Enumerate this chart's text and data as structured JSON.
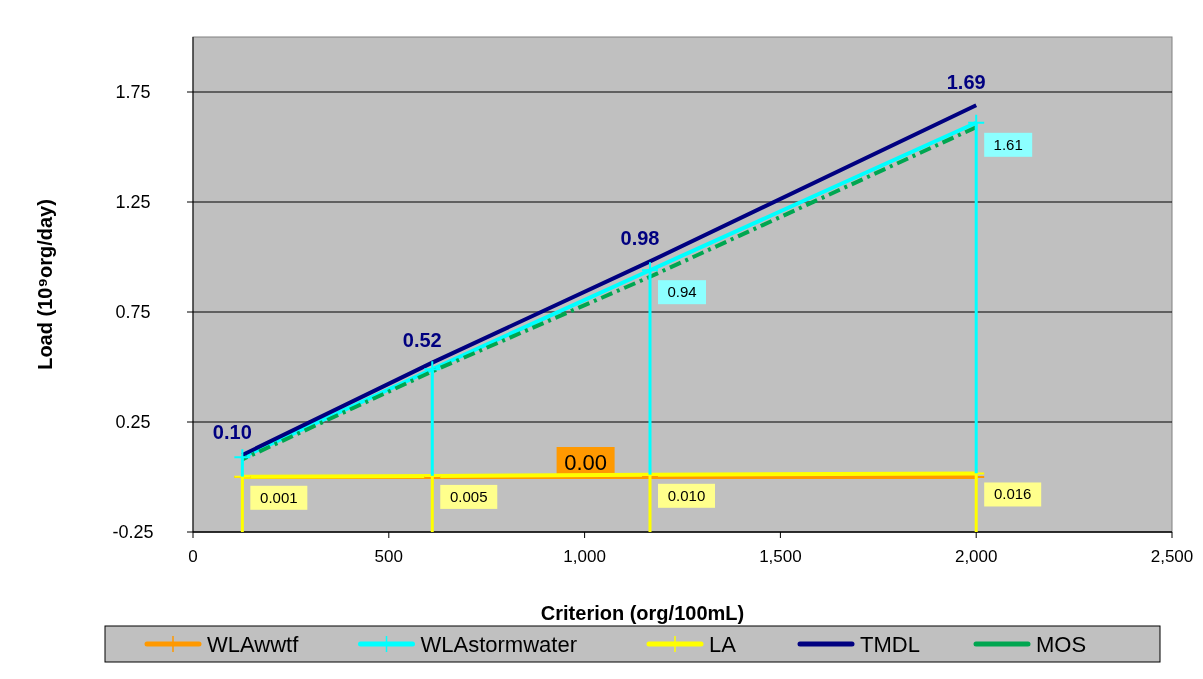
{
  "chart_data": {
    "type": "line",
    "xlabel": "Criterion (org/100mL)",
    "ylabel": "Load (10⁹org/day)",
    "x": [
      126,
      611,
      1167,
      2000
    ],
    "xlim": [
      0,
      2500
    ],
    "xticks": [
      0,
      {
        "value": 500,
        "label": "500"
      },
      {
        "value": 1000,
        "label": "1,000"
      },
      {
        "value": 1500,
        "label": "1,500"
      },
      {
        "value": 2000,
        "label": "2,000"
      },
      {
        "value": 2500,
        "label": "2,500"
      }
    ],
    "ylim": [
      -0.25,
      2.0
    ],
    "yticks": [
      -0.25,
      0.25,
      0.75,
      1.25,
      1.75
    ],
    "grid": "y",
    "legend": "bottom",
    "annotations": [
      {
        "text": "0.00",
        "x": 1000,
        "y": 0
      }
    ],
    "series": [
      {
        "name": "WLAwwtf",
        "color": "#ff9900",
        "values": [
          0,
          0,
          0,
          0
        ],
        "marker": "cross"
      },
      {
        "name": "WLAstormwater",
        "color": "#00ffff",
        "values": [
          0.09,
          0.49,
          0.94,
          1.61
        ],
        "marker": "cross",
        "errors": [
          [
            0.001,
            0.09
          ],
          [
            0.005,
            0.49
          ],
          [
            0.01,
            0.94
          ],
          [
            0.016,
            1.61
          ]
        ],
        "value_labels": [
          null,
          null,
          "0.94",
          "1.61"
        ]
      },
      {
        "name": "LA",
        "color": "#ffff00",
        "values": [
          0.001,
          0.005,
          0.01,
          0.016
        ],
        "marker": "cross",
        "errors": [
          [
            -0.25,
            0.001
          ],
          [
            -0.25,
            0.005
          ],
          [
            -0.25,
            0.01
          ],
          [
            -0.25,
            0.016
          ]
        ],
        "value_labels": [
          "0.001",
          "0.005",
          "0.010",
          "0.016"
        ]
      },
      {
        "name": "TMDL",
        "color": "#000080",
        "values": [
          0.1,
          0.52,
          0.98,
          1.69
        ],
        "marker": "none",
        "value_labels": [
          "0.10",
          "0.52",
          "0.98",
          "1.69"
        ]
      },
      {
        "name": "MOS",
        "color": "#00a650",
        "values": [
          0.08,
          0.48,
          0.91,
          1.59
        ],
        "marker": "none",
        "line_style": "dashed"
      }
    ]
  }
}
